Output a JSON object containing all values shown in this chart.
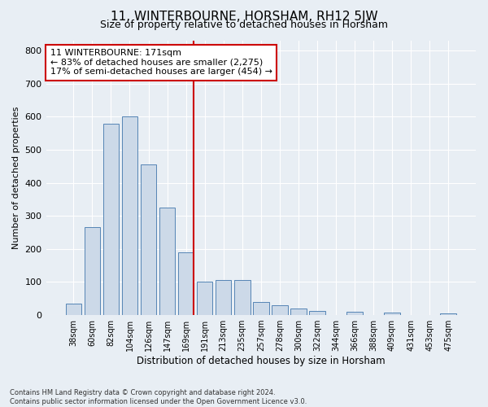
{
  "title": "11, WINTERBOURNE, HORSHAM, RH12 5JW",
  "subtitle": "Size of property relative to detached houses in Horsham",
  "xlabel": "Distribution of detached houses by size in Horsham",
  "ylabel": "Number of detached properties",
  "footer_line1": "Contains HM Land Registry data © Crown copyright and database right 2024.",
  "footer_line2": "Contains public sector information licensed under the Open Government Licence v3.0.",
  "categories": [
    "38sqm",
    "60sqm",
    "82sqm",
    "104sqm",
    "126sqm",
    "147sqm",
    "169sqm",
    "191sqm",
    "213sqm",
    "235sqm",
    "257sqm",
    "278sqm",
    "300sqm",
    "322sqm",
    "344sqm",
    "366sqm",
    "388sqm",
    "409sqm",
    "431sqm",
    "453sqm",
    "475sqm"
  ],
  "values": [
    35,
    265,
    580,
    600,
    455,
    325,
    190,
    100,
    105,
    105,
    40,
    30,
    20,
    12,
    0,
    10,
    0,
    8,
    0,
    0,
    5
  ],
  "bar_color": "#ccd9e8",
  "bar_edge_color": "#5585b5",
  "marker_index": 6,
  "marker_color": "#cc0000",
  "annotation_text": "11 WINTERBOURNE: 171sqm\n← 83% of detached houses are smaller (2,275)\n17% of semi-detached houses are larger (454) →",
  "annotation_box_color": "#ffffff",
  "annotation_box_edge_color": "#cc0000",
  "ylim": [
    0,
    830
  ],
  "yticks": [
    0,
    100,
    200,
    300,
    400,
    500,
    600,
    700,
    800
  ],
  "bg_color": "#e8eef4",
  "plot_bg_color": "#e8eef4",
  "grid_color": "#ffffff",
  "title_fontsize": 11,
  "subtitle_fontsize": 9
}
